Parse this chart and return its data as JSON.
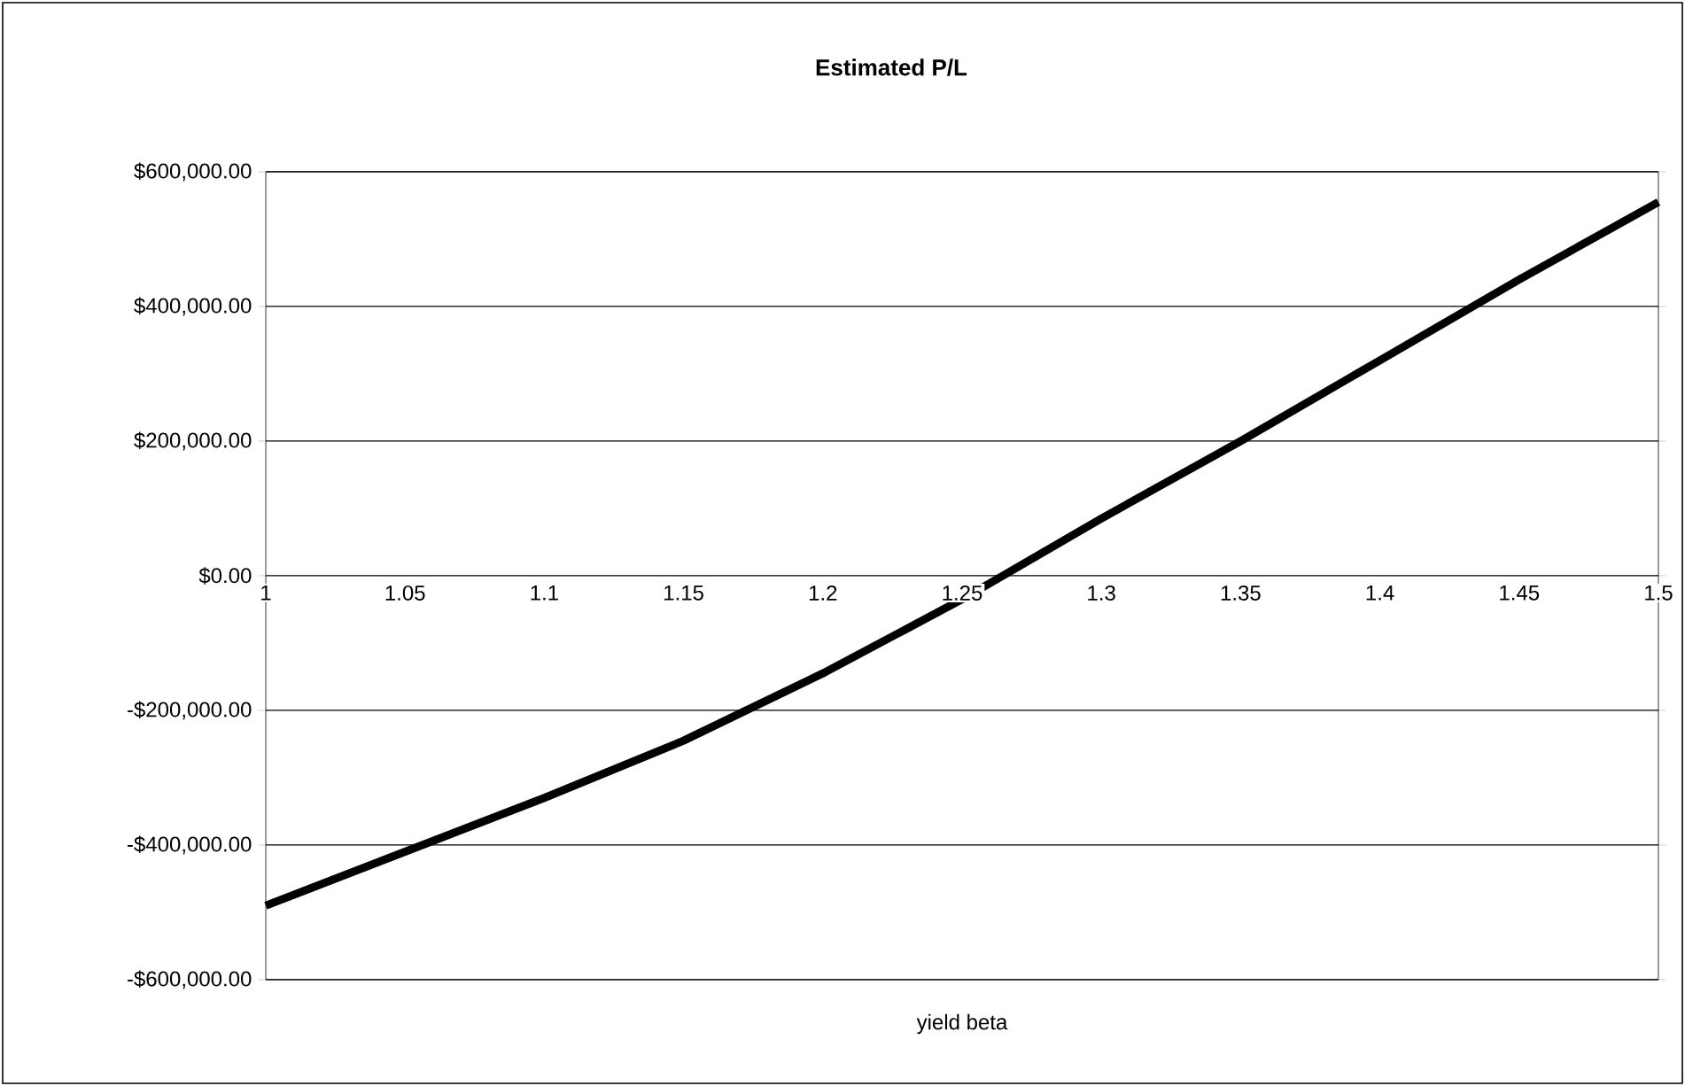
{
  "chart_data": {
    "type": "line",
    "title": "Estimated P/L",
    "xlabel": "yield beta",
    "x": [
      1,
      1.05,
      1.1,
      1.15,
      1.2,
      1.25,
      1.3,
      1.35,
      1.4,
      1.45,
      1.5
    ],
    "series": [
      {
        "color": "#000000",
        "values": [
          -490000,
          -410000,
          -330000,
          -245000,
          -145000,
          -35000,
          85000,
          200000,
          320000,
          440000,
          555000
        ]
      }
    ],
    "xlim": [
      1,
      1.5
    ],
    "xticks": [
      1,
      1.05,
      1.1,
      1.15,
      1.2,
      1.25,
      1.3,
      1.35,
      1.4,
      1.45,
      1.5
    ],
    "ylim": [
      -600000,
      600000
    ],
    "yticks": [
      {
        "value": -600000,
        "label": "-$600,000.00"
      },
      {
        "value": -400000,
        "label": "-$400,000.00"
      },
      {
        "value": -200000,
        "label": "-$200,000.00"
      },
      {
        "value": 0,
        "label": "$0.00"
      },
      {
        "value": 200000,
        "label": "$200,000.00"
      },
      {
        "value": 400000,
        "label": "$400,000.00"
      },
      {
        "value": 600000,
        "label": "$600,000.00"
      }
    ],
    "grid": "y"
  }
}
